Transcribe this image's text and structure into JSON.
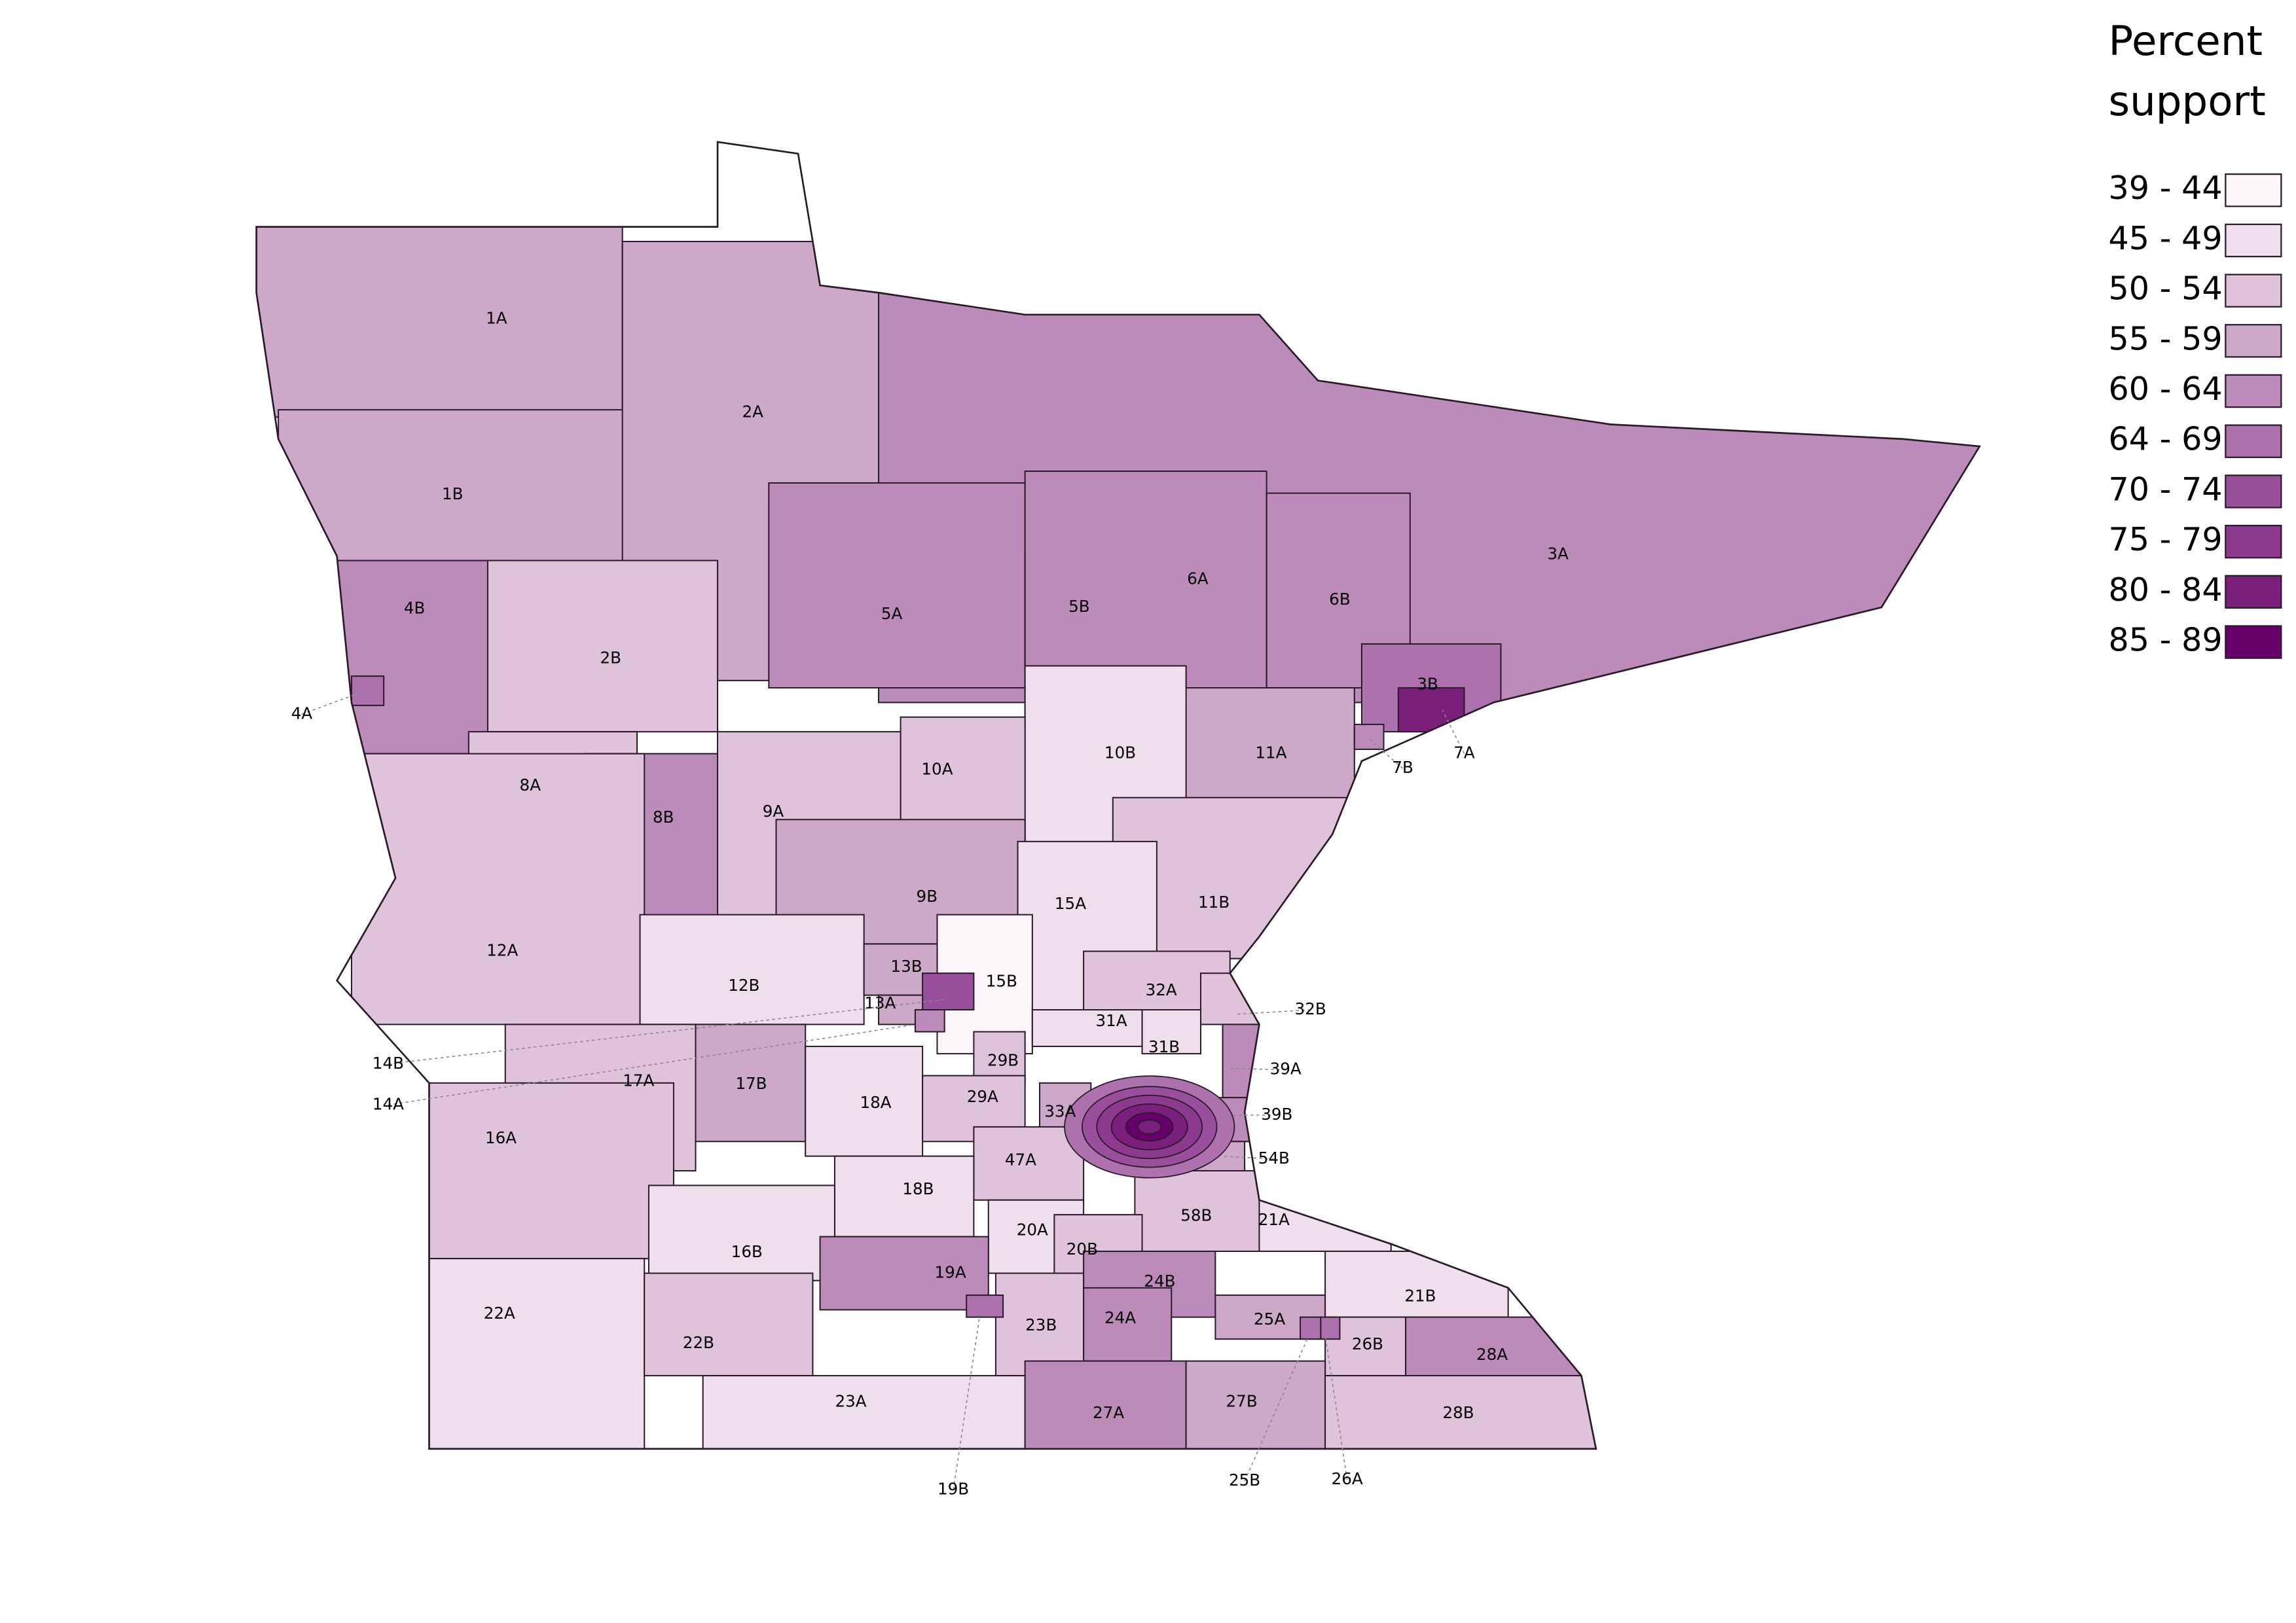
{
  "legend": {
    "title": [
      "Percent",
      "support"
    ],
    "items": [
      {
        "label": "39 - 44",
        "color": "#fcf6fa"
      },
      {
        "label": "45 - 49",
        "color": "#efdfec"
      },
      {
        "label": "50 - 54",
        "color": "#dfc3db"
      },
      {
        "label": "55 - 59",
        "color": "#cda8c9"
      },
      {
        "label": "60 - 64",
        "color": "#bc8bba"
      },
      {
        "label": "64 - 69",
        "color": "#ad72ad"
      },
      {
        "label": "70 - 74",
        "color": "#9a4f9c"
      },
      {
        "label": "75 - 79",
        "color": "#8b3a8d"
      },
      {
        "label": "80 - 84",
        "color": "#7a1f7c"
      },
      {
        "label": "85 - 89",
        "color": "#67006b"
      }
    ]
  },
  "districts": [
    "1A",
    "1B",
    "2A",
    "3A",
    "5A",
    "5B",
    "6A",
    "6B",
    "4B",
    "2B",
    "3B",
    "7A",
    "11A",
    "10B",
    "10A",
    "8A",
    "8B",
    "9A",
    "9B",
    "12A",
    "11B",
    "15A",
    "12B",
    "15B",
    "13B",
    "13A",
    "14B",
    "32A",
    "32B",
    "31A",
    "31B",
    "17A",
    "17B",
    "18A",
    "29B",
    "29A",
    "16A",
    "33A",
    "47A",
    "18B",
    "58B",
    "21A",
    "16B",
    "20A",
    "20B",
    "19A",
    "22A",
    "22B",
    "23B",
    "24B",
    "24A",
    "25A",
    "21B",
    "26B",
    "28A",
    "23A",
    "27A",
    "27B",
    "28B",
    "4A",
    "7B",
    "14A",
    "39A",
    "39B",
    "54B",
    "19B",
    "25B",
    "26A"
  ]
}
